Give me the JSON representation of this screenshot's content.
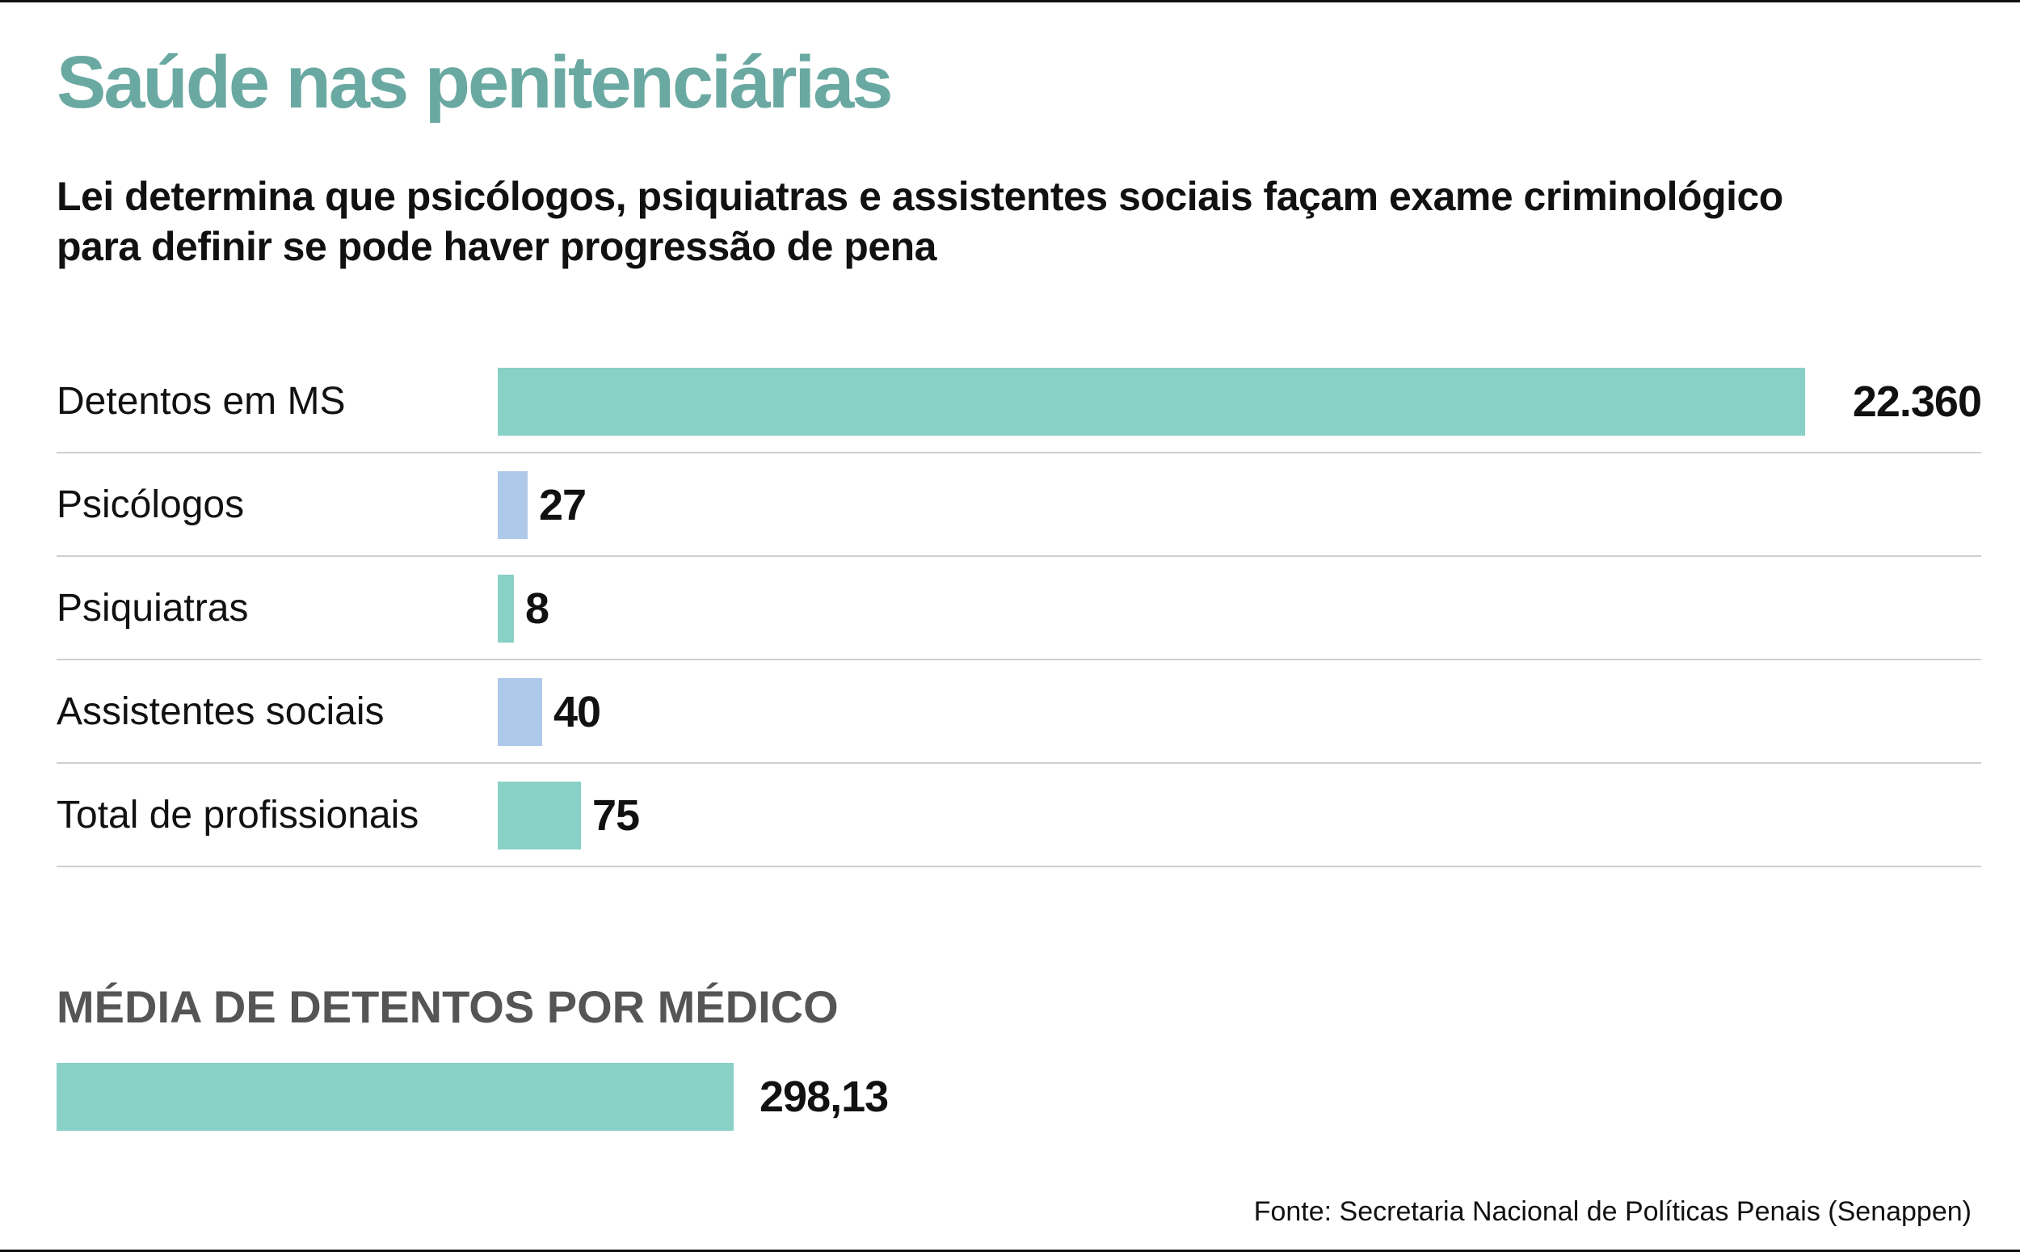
{
  "title": "Saúde nas penitenciárias",
  "subtitle": "Lei determina que psicólogos, psiquiatras e assistentes sociais façam exame criminológico para definir se pode haver progressão de pena",
  "chart_data": [
    {
      "type": "bar",
      "orientation": "horizontal",
      "categories": [
        "Detentos em MS",
        "Psicólogos",
        "Psiquiatras",
        "Assistentes sociais",
        "Total de profissionais"
      ],
      "values": [
        22360,
        27,
        8,
        40,
        75
      ],
      "value_labels": [
        "22.360",
        "27",
        "8",
        "40",
        "75"
      ],
      "colors": [
        "#89d0c6",
        "#aec9e9",
        "#89d0c6",
        "#aec9e9",
        "#89d0c6"
      ],
      "note": "bars not to common scale; small values drawn enlarged as in original"
    },
    {
      "type": "bar",
      "orientation": "horizontal",
      "title": "MÉDIA DE DETENTOS POR MÉDICO",
      "categories": [
        ""
      ],
      "values": [
        298.13
      ],
      "value_labels": [
        "298,13"
      ],
      "colors": [
        "#89d0c6"
      ]
    }
  ],
  "source": "Fonte: Secretaria Nacional de Políticas Penais (Senappen)"
}
